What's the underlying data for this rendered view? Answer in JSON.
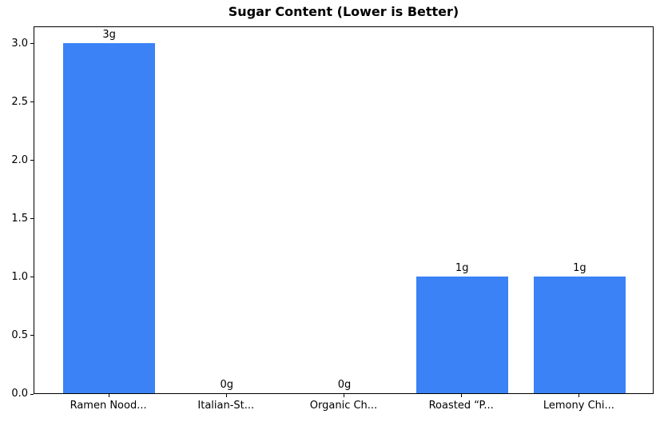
{
  "chart_data": {
    "type": "bar",
    "title": "Sugar Content (Lower is Better)",
    "categories": [
      "Ramen Nood...",
      "Italian-St...",
      "Organic Ch...",
      "Roasted “P...",
      "Lemony Chi..."
    ],
    "values": [
      3,
      0,
      0,
      1,
      1
    ],
    "bar_labels": [
      "3g",
      "0g",
      "0g",
      "1g",
      "1g"
    ],
    "xlabel": "",
    "ylabel": "",
    "ylim": [
      0,
      3.15
    ],
    "yticks": [
      0.0,
      0.5,
      1.0,
      1.5,
      2.0,
      2.5,
      3.0
    ],
    "ytick_labels": [
      "0.0",
      "0.5",
      "1.0",
      "1.5",
      "2.0",
      "2.5",
      "3.0"
    ],
    "grid": false,
    "legend": null,
    "colors": {
      "bar": "#3b82f6",
      "text": "#000000",
      "spine": "#000000",
      "background": "#ffffff"
    }
  }
}
